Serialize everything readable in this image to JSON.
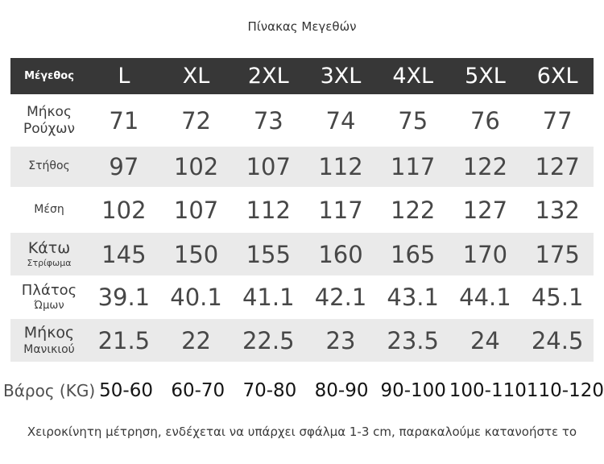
{
  "title": "Πίνακας Μεγεθών",
  "table": {
    "header": [
      "Μέγεθος",
      "L",
      "XL",
      "2XL",
      "3XL",
      "4XL",
      "5XL",
      "6XL"
    ],
    "rows": [
      {
        "label_lines": [
          "Μήκος",
          "Ρούχων"
        ],
        "values": [
          "71",
          "72",
          "73",
          "74",
          "75",
          "76",
          "77"
        ]
      },
      {
        "label_lines": [
          "Στήθος"
        ],
        "values": [
          "97",
          "102",
          "107",
          "112",
          "117",
          "122",
          "127"
        ]
      },
      {
        "label_lines": [
          "Μέση"
        ],
        "values": [
          "102",
          "107",
          "112",
          "117",
          "122",
          "127",
          "132"
        ]
      },
      {
        "label_lines": [
          "Κάτω",
          "Στρίφωμα"
        ],
        "values": [
          "145",
          "150",
          "155",
          "160",
          "165",
          "170",
          "175"
        ]
      },
      {
        "label_lines": [
          "Πλάτος",
          "Ώμων"
        ],
        "values": [
          "39.1",
          "40.1",
          "41.1",
          "42.1",
          "43.1",
          "44.1",
          "45.1"
        ]
      },
      {
        "label_lines": [
          "Μήκος",
          "Μανικιού"
        ],
        "values": [
          "21.5",
          "22",
          "22.5",
          "23",
          "23.5",
          "24",
          "24.5"
        ]
      }
    ]
  },
  "weight_row": {
    "label": "Βάρος (KG)",
    "values": [
      "50-60",
      "60-70",
      "70-80",
      "80-90",
      "90-100",
      "100-110",
      "110-120"
    ]
  },
  "footer": "Χειροκίνητη μέτρηση, ενδέχεται να υπάρχει σφάλμα 1-3 cm, παρακαλούμε κατανοήστε το",
  "colors": {
    "header_bg": "#373737",
    "header_text": "#ffffff",
    "row_alt_bg": "#eaeaea",
    "number_text": "#474747",
    "label_text": "#3c3c3c",
    "weight_label_text": "#4f4f4f",
    "weight_value_text": "#141414",
    "note_text": "#3a3a3a"
  }
}
